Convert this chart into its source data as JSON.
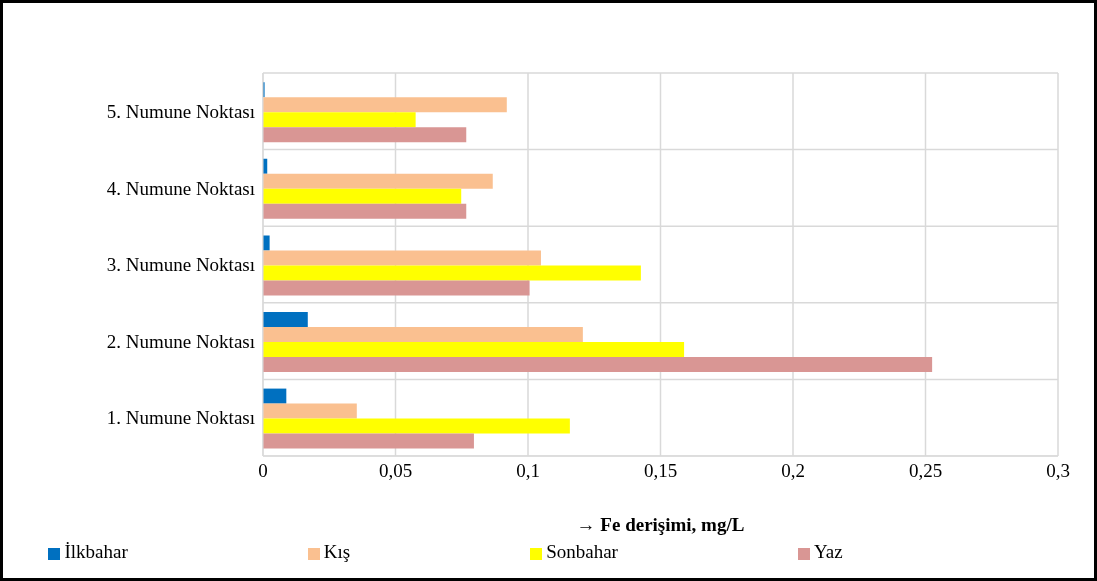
{
  "chart_data": {
    "type": "bar",
    "orientation": "horizontal",
    "xlabel": "→ Fe derişimi, mg/L",
    "categories": [
      "5. Numune Noktası",
      "4. Numune Noktası",
      "3. Numune Noktası",
      "2. Numune Noktası",
      "1. Numune Noktası"
    ],
    "series": [
      {
        "name": "İlkbahar",
        "color": "#0070c0",
        "values": [
          0.0006,
          0.0016,
          0.0025,
          0.0169,
          0.0088
        ]
      },
      {
        "name": "Kış",
        "color": "#fac090",
        "values": [
          0.092,
          0.0867,
          0.1049,
          0.1207,
          0.0354
        ]
      },
      {
        "name": "Sonbahar",
        "color": "#ffff00",
        "values": [
          0.0576,
          0.0748,
          0.1426,
          0.1589,
          0.1158
        ]
      },
      {
        "name": "Yaz",
        "color": "#d99694",
        "values": [
          0.0767,
          0.0767,
          0.1006,
          0.2525,
          0.0796
        ]
      }
    ],
    "xlim": [
      0,
      0.3
    ],
    "xticks": [
      0,
      {
        "value": 0.05,
        "label": "0,05"
      },
      {
        "value": 0.1,
        "label": "0,1"
      },
      {
        "value": 0.15,
        "label": "0,15"
      },
      {
        "value": 0.2,
        "label": "0,2"
      },
      {
        "value": 0.25,
        "label": "0,25"
      },
      {
        "value": 0.3,
        "label": "0,3"
      }
    ],
    "grid": true,
    "legend": "bottom"
  }
}
